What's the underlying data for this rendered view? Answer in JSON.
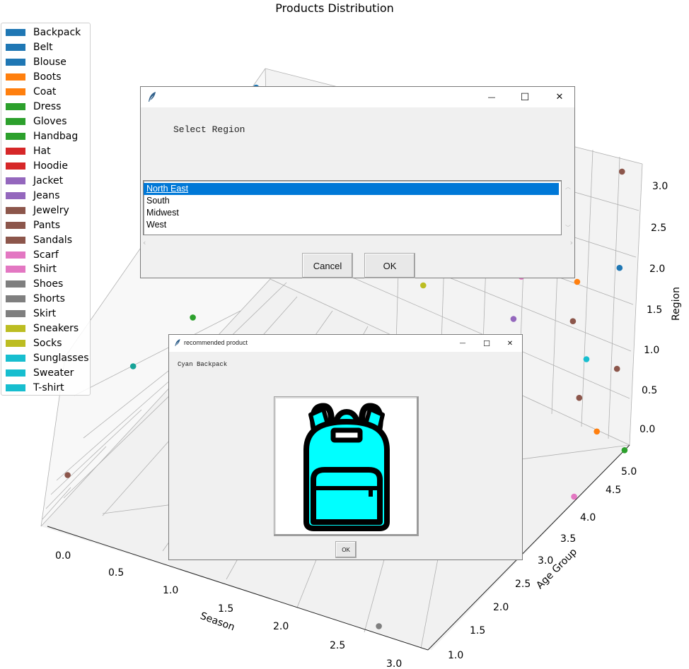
{
  "chart_data": {
    "type": "scatter",
    "projection": "3d",
    "title": "Products Distribution",
    "xlabel": "Season",
    "ylabel": "Age Group",
    "zlabel": "Region",
    "xlim": [
      0,
      3
    ],
    "ylim": [
      1,
      5
    ],
    "zlim": [
      0,
      3
    ],
    "x_ticks": [
      "0.0",
      "0.5",
      "1.0",
      "1.5",
      "2.0",
      "2.5",
      "3.0"
    ],
    "y_ticks": [
      "1.0",
      "1.5",
      "2.0",
      "2.5",
      "3.0",
      "3.5",
      "4.0",
      "4.5",
      "5.0"
    ],
    "z_ticks": [
      "0.0",
      "0.5",
      "1.0",
      "1.5",
      "2.0",
      "2.5",
      "3.0"
    ],
    "grid": true,
    "legend_placement": "upper-left",
    "legend": [
      {
        "label": "Backpack",
        "color": "#1f77b4"
      },
      {
        "label": "Belt",
        "color": "#1f77b4"
      },
      {
        "label": "Blouse",
        "color": "#1f77b4"
      },
      {
        "label": "Boots",
        "color": "#ff7f0e"
      },
      {
        "label": "Coat",
        "color": "#ff7f0e"
      },
      {
        "label": "Dress",
        "color": "#2ca02c"
      },
      {
        "label": "Gloves",
        "color": "#2ca02c"
      },
      {
        "label": "Handbag",
        "color": "#2ca02c"
      },
      {
        "label": "Hat",
        "color": "#d62728"
      },
      {
        "label": "Hoodie",
        "color": "#d62728"
      },
      {
        "label": "Jacket",
        "color": "#9467bd"
      },
      {
        "label": "Jeans",
        "color": "#9467bd"
      },
      {
        "label": "Jewelry",
        "color": "#8c564b"
      },
      {
        "label": "Pants",
        "color": "#8c564b"
      },
      {
        "label": "Sandals",
        "color": "#8c564b"
      },
      {
        "label": "Scarf",
        "color": "#e377c2"
      },
      {
        "label": "Shirt",
        "color": "#e377c2"
      },
      {
        "label": "Shoes",
        "color": "#7f7f7f"
      },
      {
        "label": "Shorts",
        "color": "#7f7f7f"
      },
      {
        "label": "Skirt",
        "color": "#7f7f7f"
      },
      {
        "label": "Sneakers",
        "color": "#bcbd22"
      },
      {
        "label": "Socks",
        "color": "#bcbd22"
      },
      {
        "label": "Sunglasses",
        "color": "#17becf"
      },
      {
        "label": "Sweater",
        "color": "#17becf"
      },
      {
        "label": "T-shirt",
        "color": "#17becf"
      }
    ],
    "points": [
      {
        "x": 0.05,
        "y": 4.6,
        "z": 2.6,
        "color": "#e0eedd"
      },
      {
        "x": 0.3,
        "y": 4.5,
        "z": 2.9,
        "color": "#1f77b4"
      },
      {
        "x": 0.35,
        "y": 4.2,
        "z": 1.8,
        "color": "#ff7f0e"
      },
      {
        "x": 0.7,
        "y": 4.6,
        "z": 2.05,
        "color": "#7f7f7f"
      },
      {
        "x": 1.1,
        "y": 4.7,
        "z": 1.55,
        "color": "#17becf"
      },
      {
        "x": 1.4,
        "y": 5.0,
        "z": 1.0,
        "color": "#bcbd22"
      },
      {
        "x": 1.8,
        "y": 5.0,
        "z": 1.35,
        "color": "#9467bd"
      },
      {
        "x": 2.1,
        "y": 5.0,
        "z": 0.95,
        "color": "#9467bd"
      },
      {
        "x": 2.2,
        "y": 4.9,
        "z": 1.5,
        "color": "#e377c2"
      },
      {
        "x": 2.6,
        "y": 4.9,
        "z": 1.2,
        "color": "#8c564b"
      },
      {
        "x": 2.75,
        "y": 4.6,
        "z": 1.85,
        "color": "#ff7f0e"
      },
      {
        "x": 2.9,
        "y": 4.4,
        "z": 1.2,
        "color": "#17becf"
      },
      {
        "x": 3.0,
        "y": 4.0,
        "z": 1.05,
        "color": "#8c564b"
      },
      {
        "x": 0.2,
        "y": 3.5,
        "z": 0.95,
        "color": "#2ca02c"
      },
      {
        "x": 0.05,
        "y": 2.7,
        "z": 0.8,
        "color": "#17a398"
      },
      {
        "x": 0.35,
        "y": 3.6,
        "z": 0.15,
        "color": "#17becf"
      },
      {
        "x": 0.05,
        "y": 1.4,
        "z": 0.35,
        "color": "#8c564b"
      },
      {
        "x": 3.0,
        "y": 4.85,
        "z": 3.0,
        "color": "#8c564b"
      },
      {
        "x": 3.0,
        "y": 4.8,
        "z": 2.0,
        "color": "#1f77b4"
      },
      {
        "x": 3.0,
        "y": 4.75,
        "z": 0.95,
        "color": "#8c564b"
      },
      {
        "x": 3.0,
        "y": 4.35,
        "z": 0.5,
        "color": "#ff7f0e"
      },
      {
        "x": 3.0,
        "y": 4.9,
        "z": 0.0,
        "color": "#2ca02c"
      },
      {
        "x": 3.0,
        "y": 3.9,
        "z": 0.05,
        "color": "#e377c2"
      },
      {
        "x": 3.0,
        "y": 2.7,
        "z": 0.25,
        "color": "#9467bd"
      },
      {
        "x": 1.3,
        "y": 1.8,
        "z": 0.05,
        "color": "#8c564b"
      },
      {
        "x": 2.6,
        "y": 1.05,
        "z": 0.05,
        "color": "#7f7f7f"
      }
    ]
  },
  "region_dialog": {
    "prompt": "Select Region",
    "options": [
      "North East",
      "South",
      "Midwest",
      "West"
    ],
    "selected_index": 0,
    "cancel_label": "Cancel",
    "ok_label": "OK",
    "minimize_glyph": "—",
    "maximize_glyph": "☐",
    "close_glyph": "✕"
  },
  "product_dialog": {
    "window_title": "recommended product",
    "product_text": "Cyan Backpack",
    "ok_label": "OK",
    "minimize_glyph": "—",
    "maximize_glyph": "☐",
    "close_glyph": "✕",
    "image_icon": "backpack-icon",
    "image_color": "#00ffff"
  }
}
